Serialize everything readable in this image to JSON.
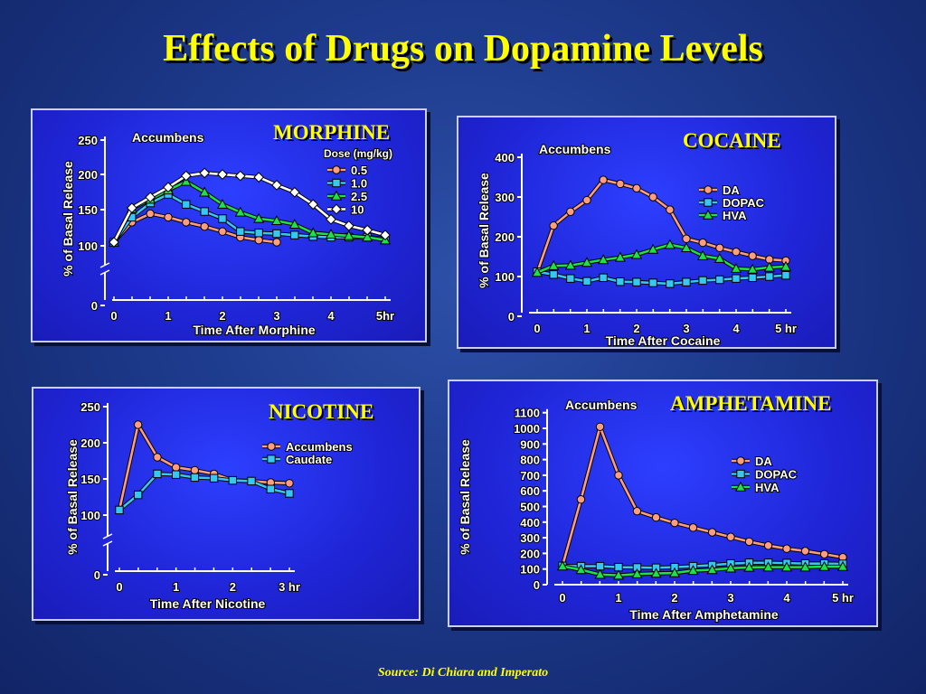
{
  "title": "Effects of Drugs on Dopamine Levels",
  "source": "Source: Di Chiara and Imperato",
  "colors": {
    "title": "#ffff00",
    "pink": "#ff9d80",
    "blue": "#38c6f2",
    "green": "#1ee04a",
    "white": "#ffffff"
  },
  "chart_data": [
    {
      "id": "morphine",
      "type": "line",
      "title": "MORPHINE",
      "region": "Accumbens",
      "legend_title": "Dose (mg/kg)",
      "xlabel": "Time After Morphine",
      "ylabel": "% of Basal Release",
      "xlim": [
        0,
        5
      ],
      "xticks": [
        0,
        1,
        2,
        3,
        4,
        5
      ],
      "xtick_labels": [
        "0",
        "1",
        "2",
        "3",
        "4",
        "5hr"
      ],
      "y_axis_break": true,
      "yticks": [
        0,
        100,
        150,
        200,
        250
      ],
      "ytick_labels": [
        "0",
        "100",
        "150",
        "200",
        "250"
      ],
      "series": [
        {
          "name": "0.5",
          "color": "#ff9d80",
          "marker": "circle",
          "x": [
            0,
            0.33,
            0.67,
            1,
            1.33,
            1.67,
            2,
            2.33,
            2.67,
            3
          ],
          "y": [
            105,
            133,
            145,
            140,
            133,
            127,
            120,
            112,
            108,
            105
          ]
        },
        {
          "name": "1.0",
          "color": "#38c6f2",
          "marker": "square",
          "x": [
            0,
            0.33,
            0.67,
            1,
            1.33,
            1.67,
            2,
            2.33,
            2.67,
            3,
            3.33,
            3.67,
            4,
            4.33,
            4.67,
            5
          ],
          "y": [
            105,
            140,
            160,
            172,
            158,
            148,
            138,
            120,
            118,
            117,
            115,
            113,
            112,
            112,
            112,
            110
          ]
        },
        {
          "name": "2.5",
          "color": "#1ee04a",
          "marker": "triangle",
          "x": [
            0,
            0.33,
            0.67,
            1,
            1.33,
            1.67,
            2,
            2.33,
            2.67,
            3,
            3.33,
            3.67,
            4,
            4.33,
            4.67,
            5
          ],
          "y": [
            105,
            152,
            165,
            178,
            190,
            175,
            158,
            147,
            138,
            135,
            130,
            118,
            116,
            114,
            112,
            108
          ]
        },
        {
          "name": "10",
          "color": "#ffffff",
          "marker": "diamond",
          "x": [
            0,
            0.33,
            0.67,
            1,
            1.33,
            1.67,
            2,
            2.33,
            2.67,
            3,
            3.33,
            3.67,
            4,
            4.33,
            4.67,
            5
          ],
          "y": [
            105,
            153,
            168,
            182,
            198,
            202,
            200,
            198,
            196,
            185,
            175,
            158,
            137,
            128,
            122,
            115
          ]
        }
      ]
    },
    {
      "id": "cocaine",
      "type": "line",
      "title": "COCAINE",
      "region": "Accumbens",
      "xlabel": "Time After Cocaine",
      "ylabel": "% of Basal Release",
      "xlim": [
        0,
        5
      ],
      "xticks": [
        0,
        1,
        2,
        3,
        4,
        5
      ],
      "xtick_labels": [
        "0",
        "1",
        "2",
        "3",
        "4",
        "5 hr"
      ],
      "ylim": [
        0,
        400
      ],
      "yticks": [
        0,
        100,
        200,
        300,
        400
      ],
      "ytick_labels": [
        "0",
        "100",
        "200",
        "300",
        "400"
      ],
      "series": [
        {
          "name": "DA",
          "color": "#ff9d80",
          "marker": "circle",
          "x": [
            0,
            0.33,
            0.67,
            1,
            1.33,
            1.67,
            2,
            2.33,
            2.67,
            3,
            3.33,
            3.67,
            4,
            4.33,
            4.67,
            5
          ],
          "y": [
            110,
            228,
            263,
            292,
            343,
            333,
            322,
            300,
            268,
            195,
            185,
            172,
            162,
            152,
            143,
            140
          ]
        },
        {
          "name": "DOPAC",
          "color": "#38c6f2",
          "marker": "square",
          "x": [
            0,
            0.33,
            0.67,
            1,
            1.33,
            1.67,
            2,
            2.33,
            2.67,
            3,
            3.33,
            3.67,
            4,
            4.33,
            4.67,
            5
          ],
          "y": [
            112,
            105,
            95,
            88,
            97,
            87,
            86,
            84,
            82,
            86,
            90,
            92,
            95,
            97,
            100,
            103
          ]
        },
        {
          "name": "HVA",
          "color": "#1ee04a",
          "marker": "triangle",
          "x": [
            0,
            0.33,
            0.67,
            1,
            1.33,
            1.67,
            2,
            2.33,
            2.67,
            3,
            3.33,
            3.67,
            4,
            4.33,
            4.67,
            5
          ],
          "y": [
            110,
            127,
            128,
            135,
            142,
            148,
            155,
            168,
            180,
            172,
            152,
            145,
            120,
            118,
            123,
            125
          ]
        }
      ]
    },
    {
      "id": "nicotine",
      "type": "line",
      "title": "NICOTINE",
      "xlabel": "Time After Nicotine",
      "ylabel": "% of Basal Release",
      "xlim": [
        0,
        3
      ],
      "xticks": [
        0,
        1,
        2,
        3
      ],
      "xtick_labels": [
        "0",
        "1",
        "2",
        "3 hr"
      ],
      "y_axis_break": true,
      "yticks": [
        0,
        100,
        150,
        200,
        250
      ],
      "ytick_labels": [
        "0",
        "100",
        "150",
        "200",
        "250"
      ],
      "series": [
        {
          "name": "Accumbens",
          "color": "#ff9d80",
          "marker": "circle",
          "x": [
            0,
            0.33,
            0.67,
            1,
            1.33,
            1.67,
            2,
            2.33,
            2.67,
            3
          ],
          "y": [
            107,
            225,
            180,
            166,
            162,
            157,
            148,
            147,
            145,
            144
          ]
        },
        {
          "name": "Caudate",
          "color": "#38c6f2",
          "marker": "square",
          "x": [
            0,
            0.33,
            0.67,
            1,
            1.33,
            1.67,
            2,
            2.33,
            2.67,
            3
          ],
          "y": [
            107,
            128,
            157,
            156,
            152,
            151,
            148,
            147,
            136,
            130
          ]
        }
      ]
    },
    {
      "id": "amphetamine",
      "type": "line",
      "title": "AMPHETAMINE",
      "region": "Accumbens",
      "xlabel": "Time After Amphetamine",
      "ylabel": "% of Basal Release",
      "xlim": [
        0,
        5
      ],
      "xticks": [
        0,
        1,
        2,
        3,
        4,
        5
      ],
      "xtick_labels": [
        "0",
        "1",
        "2",
        "3",
        "4",
        "5 hr"
      ],
      "ylim": [
        0,
        1100
      ],
      "yticks": [
        0,
        100,
        200,
        300,
        400,
        500,
        600,
        700,
        800,
        900,
        1000,
        1100
      ],
      "ytick_labels": [
        "0",
        "100",
        "200",
        "300",
        "400",
        "500",
        "600",
        "700",
        "800",
        "900",
        "1000",
        "1100"
      ],
      "series": [
        {
          "name": "DA",
          "color": "#ff9d80",
          "marker": "circle",
          "x": [
            0,
            0.33,
            0.67,
            1,
            1.33,
            1.67,
            2,
            2.33,
            2.67,
            3,
            3.33,
            3.67,
            4,
            4.33,
            4.67,
            5
          ],
          "y": [
            120,
            545,
            1010,
            700,
            470,
            430,
            395,
            365,
            335,
            305,
            275,
            250,
            230,
            215,
            195,
            175
          ]
        },
        {
          "name": "DOPAC",
          "color": "#38c6f2",
          "marker": "square",
          "x": [
            0,
            0.33,
            0.67,
            1,
            1.33,
            1.67,
            2,
            2.33,
            2.67,
            3,
            3.33,
            3.67,
            4,
            4.33,
            4.67,
            5
          ],
          "y": [
            120,
            118,
            118,
            112,
            110,
            108,
            112,
            118,
            125,
            135,
            140,
            140,
            138,
            135,
            135,
            133
          ]
        },
        {
          "name": "HVA",
          "color": "#1ee04a",
          "marker": "triangle",
          "x": [
            0,
            0.33,
            0.67,
            1,
            1.33,
            1.67,
            2,
            2.33,
            2.67,
            3,
            3.33,
            3.67,
            4,
            4.33,
            4.67,
            5
          ],
          "y": [
            118,
            95,
            65,
            60,
            68,
            72,
            75,
            90,
            95,
            105,
            110,
            112,
            112,
            112,
            115,
            115
          ]
        }
      ]
    }
  ]
}
